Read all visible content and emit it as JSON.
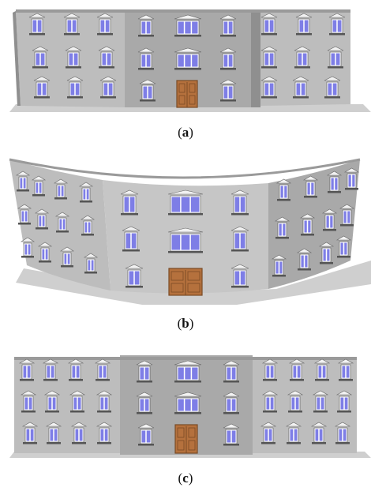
{
  "figure": {
    "panels": [
      {
        "id": "a",
        "caption_open": "(",
        "caption_letter": "a",
        "caption_close": ")",
        "variant": "flat-bent"
      },
      {
        "id": "b",
        "caption_open": "(",
        "caption_letter": "b",
        "caption_close": ")",
        "variant": "curved"
      },
      {
        "id": "c",
        "caption_open": "(",
        "caption_letter": "c",
        "caption_close": ")",
        "variant": "flat"
      }
    ]
  },
  "colors": {
    "wall_light": "#bdbdbd",
    "wall_mid": "#a9a9a9",
    "wall_dark": "#8f8f8f",
    "wall_top": "#9a9a9a",
    "window_glass": "#7e7ee6",
    "window_frame": "#ffffff",
    "door": "#b5713d",
    "door_dark": "#7a4a25",
    "shadow": "#cfcfcf"
  }
}
